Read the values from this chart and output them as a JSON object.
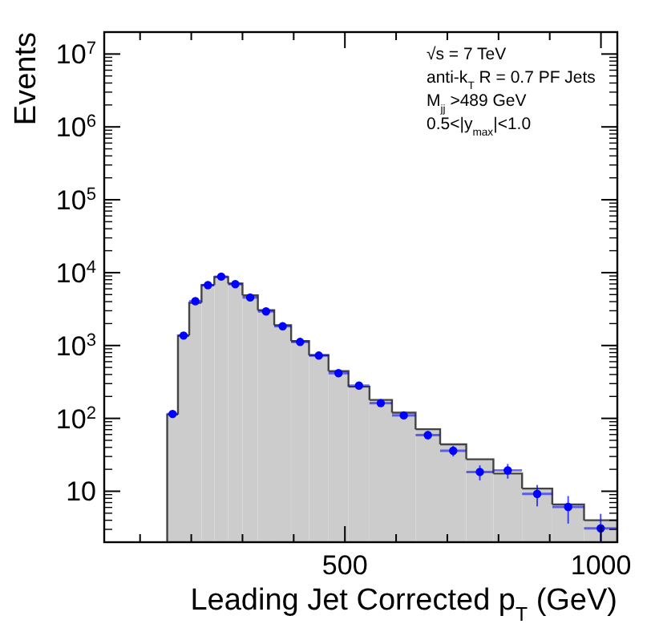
{
  "chart_data": {
    "type": "histogram",
    "xlabel": "Leading Jet Corrected p$_{T}$ (GeV)",
    "ylabel": "Events",
    "annotations": [
      "√s = 7 TeV",
      "anti-k$_{T}$ R = 0.7 PF Jets",
      "M$_{jj}$ >489 GeV",
      "0.5<|y$_{max}$|<1.0"
    ],
    "log": "y",
    "grid": false,
    "xlim": [
      30,
      1032
    ],
    "ylim": [
      2,
      20000000
    ],
    "xticks": [
      {
        "value": 100,
        "label": null
      },
      {
        "value": 200,
        "label": null
      },
      {
        "value": 300,
        "label": null
      },
      {
        "value": 400,
        "label": null
      },
      500,
      {
        "value": 600,
        "label": null
      },
      {
        "value": 700,
        "label": null
      },
      {
        "value": 800,
        "label": null
      },
      {
        "value": 900,
        "label": null
      },
      1000
    ],
    "yticks": [
      10,
      {
        "value": 100,
        "label": "10$^{2}$"
      },
      {
        "value": 1000,
        "label": "10$^{3}$"
      },
      {
        "value": 10000,
        "label": "10$^{4}$"
      },
      {
        "value": 100000,
        "label": "10$^{5}$"
      },
      {
        "value": 1000000,
        "label": "10$^{6}$"
      },
      {
        "value": 10000000,
        "label": "10$^{7}$"
      }
    ],
    "bins": [
      153,
      174,
      196,
      220,
      245,
      272,
      300,
      330,
      362,
      395,
      430,
      468,
      507,
      548,
      592,
      638,
      686,
      737,
      790,
      846,
      905,
      967,
      1032
    ],
    "series": [
      {
        "color": "#cccccc",
        "values": [
          113,
          1370,
          3860,
          6740,
          8700,
          7100,
          4870,
          3050,
          1900,
          1150,
          738,
          445,
          272,
          179,
          120,
          71,
          44,
          27.5,
          17.5,
          10.9,
          6.6,
          4.0
        ]
      },
      {
        "type": "scatter",
        "color": "#0000ff",
        "marker": "circle",
        "x": [
          163.5,
          185,
          208,
          232.5,
          258.5,
          286,
          315,
          346,
          378.5,
          412.5,
          449,
          487.5,
          527.5,
          570,
          615,
          662,
          711.5,
          763.5,
          818,
          875.5,
          936,
          999.5
        ],
        "values": [
          115,
          1370,
          4060,
          6740,
          8810,
          6950,
          4560,
          2940,
          1840,
          1120,
          728,
          417,
          282,
          162,
          110,
          59,
          36,
          18.4,
          19.3,
          9.2,
          6.1,
          3.1
        ],
        "errors": [
          null,
          null,
          null,
          null,
          null,
          null,
          null,
          null,
          null,
          null,
          null,
          null,
          null,
          null,
          null,
          8,
          6,
          4.3,
          4.4,
          3,
          2.5,
          1.8
        ],
        "xerrors": [
          10.5,
          11,
          12,
          12.5,
          13.5,
          14,
          15,
          16,
          16.5,
          17.5,
          19,
          19.5,
          20.5,
          22,
          23,
          24,
          25.5,
          26.5,
          28,
          29.5,
          31,
          32.5
        ]
      }
    ]
  }
}
